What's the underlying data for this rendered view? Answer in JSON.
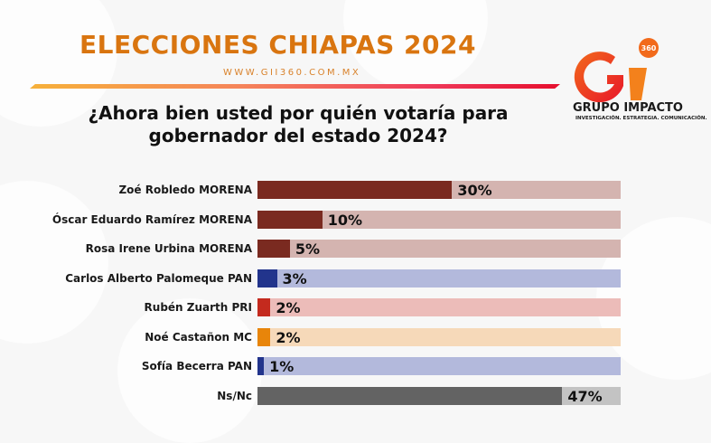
{
  "header": {
    "title": "ELECCIONES CHIAPAS 2024",
    "url": "WWW.GII360.COM.MX"
  },
  "logo": {
    "badge": "360",
    "name": "GRUPO IMPACTO",
    "tagline": "INVESTIGACIÓN. ESTRATEGIA. COMUNICACIÓN."
  },
  "chart_data": {
    "type": "bar",
    "orientation": "horizontal",
    "title": "¿Ahora bien usted por quién votaría para gobernador del estado 2024?",
    "categories": [
      "Zoé Robledo MORENA",
      "Óscar Eduardo Ramírez MORENA",
      "Rosa Irene Urbina MORENA",
      "Carlos Alberto Palomeque PAN",
      "Rubén Zuarth PRI",
      "Noé Castañon MC",
      "Sofía Becerra PAN",
      "Ns/Nc"
    ],
    "values": [
      30,
      10,
      5,
      3,
      2,
      2,
      1,
      47
    ],
    "value_labels": [
      "30%",
      "10%",
      "5%",
      "3%",
      "2%",
      "2%",
      "1%",
      "47%"
    ],
    "unit": "%",
    "colors": [
      "#7a2a20",
      "#7a2a20",
      "#7a2a20",
      "#22348c",
      "#c42a1e",
      "#e8850a",
      "#22348c",
      "#636363"
    ],
    "track_colors": [
      "#d4b4b0",
      "#d4b4b0",
      "#d4b4b0",
      "#b3b9dc",
      "#ecbcb9",
      "#f6d9b9",
      "#b3b9dc",
      "#c3c3c3"
    ],
    "xlim": [
      0,
      56
    ],
    "grid": false,
    "legend": "none"
  }
}
